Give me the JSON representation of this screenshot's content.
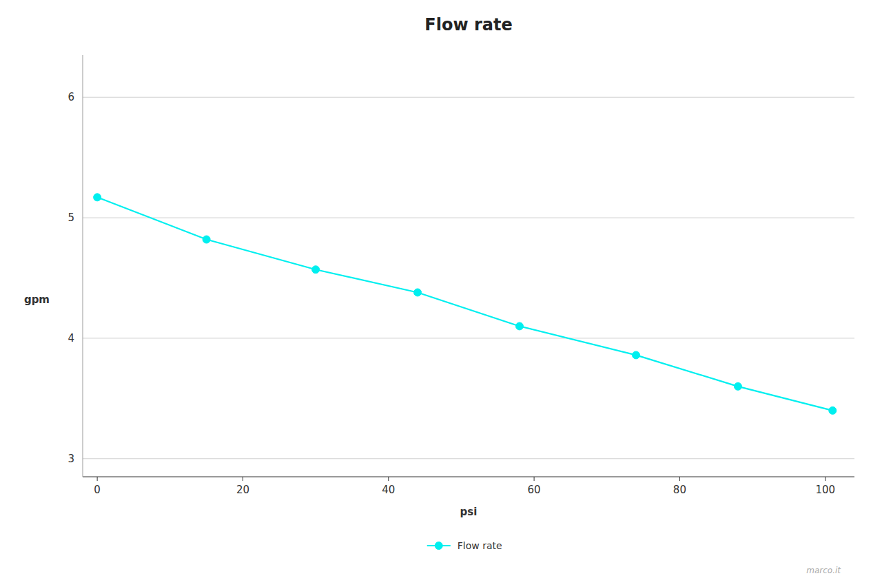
{
  "chart_data": {
    "type": "line",
    "title": "Flow rate",
    "xlabel": "psi",
    "ylabel": "gpm",
    "x": [
      0,
      15,
      30,
      44,
      58,
      74,
      88,
      101
    ],
    "series": [
      {
        "name": "Flow rate",
        "color": "#00EFEF",
        "marker": "circle",
        "values": [
          5.17,
          4.82,
          4.57,
          4.38,
          4.1,
          3.86,
          3.6,
          3.4
        ]
      }
    ],
    "xlim": [
      -2,
      104
    ],
    "ylim": [
      2.85,
      6.35
    ],
    "xticks": [
      0,
      20,
      40,
      60,
      80,
      100
    ],
    "yticks": [
      3,
      4,
      5,
      6
    ],
    "grid": true,
    "legend": "bottom",
    "annotations": [
      "marco.it"
    ]
  }
}
